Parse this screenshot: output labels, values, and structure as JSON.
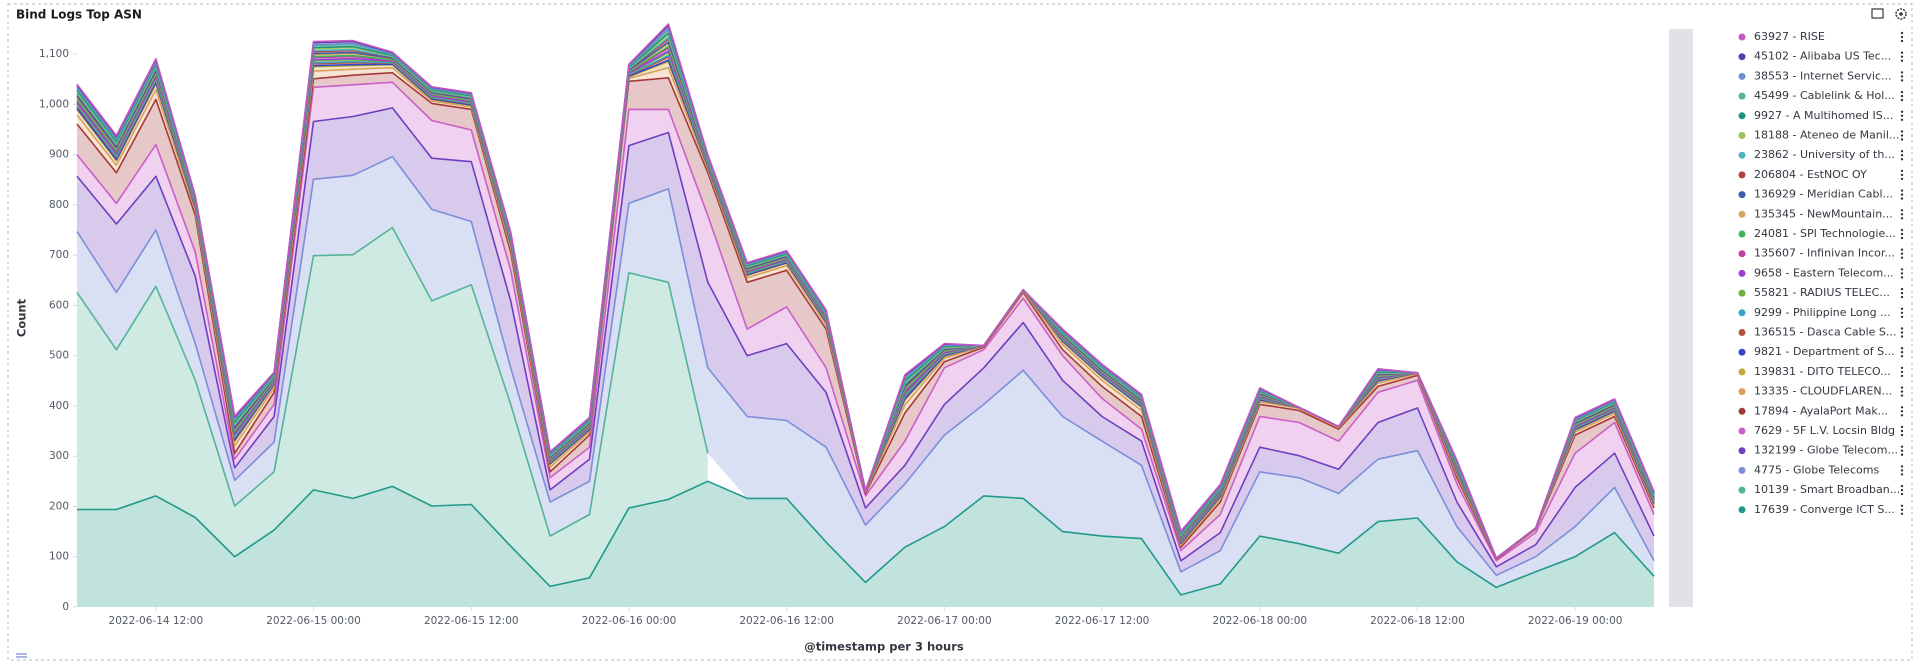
{
  "chart_data": {
    "type": "stacked-area",
    "title": "Bind Logs Top ASN",
    "x_label": "@timestamp per 3 hours",
    "y_label": "Count",
    "legend": "right",
    "grid": false,
    "x": [
      "2022-06-14 06:00",
      "2022-06-14 09:00",
      "2022-06-14 12:00",
      "2022-06-14 15:00",
      "2022-06-14 18:00",
      "2022-06-14 21:00",
      "2022-06-15 00:00",
      "2022-06-15 03:00",
      "2022-06-15 06:00",
      "2022-06-15 09:00",
      "2022-06-15 12:00",
      "2022-06-15 15:00",
      "2022-06-15 18:00",
      "2022-06-15 21:00",
      "2022-06-16 00:00",
      "2022-06-16 03:00",
      "2022-06-16 06:00",
      "2022-06-16 09:00",
      "2022-06-16 12:00",
      "2022-06-16 15:00",
      "2022-06-16 18:00",
      "2022-06-16 21:00",
      "2022-06-17 00:00",
      "2022-06-17 03:00",
      "2022-06-17 06:00",
      "2022-06-17 09:00",
      "2022-06-17 12:00",
      "2022-06-17 15:00",
      "2022-06-17 18:00",
      "2022-06-17 21:00",
      "2022-06-18 00:00",
      "2022-06-18 03:00",
      "2022-06-18 06:00",
      "2022-06-18 09:00",
      "2022-06-18 12:00",
      "2022-06-18 15:00",
      "2022-06-18 18:00",
      "2022-06-18 21:00",
      "2022-06-19 00:00",
      "2022-06-19 03:00",
      "2022-06-19 06:00"
    ],
    "xlim": [
      "2022-06-14 06:00",
      "2022-06-19 06:00"
    ],
    "xticks": [
      "2022-06-14 12:00",
      "2022-06-15 00:00",
      "2022-06-15 12:00",
      "2022-06-16 00:00",
      "2022-06-16 12:00",
      "2022-06-17 00:00",
      "2022-06-17 12:00",
      "2022-06-18 00:00",
      "2022-06-18 12:00",
      "2022-06-19 00:00"
    ],
    "ylim": [
      0,
      1150
    ],
    "yticks": [
      0,
      100,
      200,
      300,
      400,
      500,
      600,
      700,
      800,
      900,
      {
        "value": 1000,
        "label": "1,000"
      },
      {
        "value": 1100,
        "label": "1,100"
      }
    ],
    "series": [
      {
        "name": "63927 - RISE",
        "color": "#c457c0",
        "values": [
          2,
          2,
          2,
          1,
          2,
          1,
          2,
          2,
          1,
          1,
          1,
          1,
          1,
          1,
          1,
          3,
          1,
          1,
          1,
          1,
          0,
          2,
          1,
          0,
          0,
          1,
          1,
          1,
          1,
          1,
          1,
          0,
          0,
          1,
          0,
          1,
          0,
          0,
          1,
          1,
          1
        ]
      },
      {
        "name": "45102 - Alibaba US Tec...",
        "color": "#5a3aa8",
        "values": [
          4,
          4,
          4,
          2,
          4,
          2,
          4,
          4,
          2,
          2,
          2,
          2,
          2,
          2,
          2,
          6,
          2,
          2,
          2,
          2,
          0,
          4,
          2,
          0,
          0,
          2,
          2,
          2,
          2,
          2,
          2,
          0,
          0,
          2,
          0,
          2,
          0,
          0,
          2,
          2,
          2
        ]
      },
      {
        "name": "38553 - Internet Servic...",
        "color": "#6d8fd6",
        "values": [
          2,
          2,
          2,
          1,
          2,
          1,
          2,
          2,
          1,
          1,
          1,
          1,
          1,
          1,
          1,
          3,
          1,
          1,
          1,
          1,
          0,
          2,
          1,
          0,
          0,
          1,
          1,
          1,
          1,
          1,
          1,
          0,
          0,
          1,
          0,
          1,
          0,
          0,
          1,
          1,
          1
        ]
      },
      {
        "name": "45499 - Cablelink & Hol...",
        "color": "#54b399",
        "values": [
          4,
          4,
          4,
          2,
          4,
          2,
          4,
          4,
          2,
          2,
          2,
          2,
          2,
          2,
          2,
          6,
          2,
          2,
          2,
          2,
          0,
          4,
          2,
          0,
          0,
          2,
          2,
          2,
          2,
          2,
          2,
          0,
          0,
          2,
          0,
          2,
          0,
          0,
          2,
          2,
          2
        ]
      },
      {
        "name": "9927 - A Multihomed IS...",
        "color": "#209280",
        "values": [
          2,
          2,
          2,
          1,
          2,
          1,
          2,
          2,
          1,
          1,
          1,
          1,
          1,
          1,
          1,
          3,
          1,
          1,
          1,
          1,
          0,
          2,
          1,
          0,
          0,
          1,
          1,
          1,
          1,
          1,
          1,
          0,
          0,
          1,
          0,
          1,
          0,
          0,
          1,
          1,
          1
        ]
      },
      {
        "name": "18188 - Ateneo de Manil...",
        "color": "#9bc453",
        "values": [
          4,
          4,
          4,
          2,
          4,
          2,
          4,
          4,
          2,
          2,
          2,
          2,
          2,
          2,
          2,
          6,
          2,
          2,
          2,
          2,
          0,
          4,
          2,
          0,
          0,
          2,
          2,
          2,
          2,
          2,
          2,
          0,
          0,
          2,
          0,
          2,
          0,
          0,
          2,
          2,
          2
        ]
      },
      {
        "name": "23862 - University of th...",
        "color": "#4fb6c1",
        "values": [
          2,
          2,
          2,
          1,
          2,
          1,
          2,
          2,
          1,
          1,
          1,
          1,
          1,
          1,
          1,
          3,
          1,
          1,
          1,
          1,
          0,
          2,
          1,
          0,
          0,
          1,
          1,
          1,
          1,
          1,
          1,
          0,
          0,
          1,
          0,
          1,
          0,
          0,
          1,
          1,
          1
        ]
      },
      {
        "name": "206804 - EstNOC OY",
        "color": "#b0413e",
        "values": [
          4,
          4,
          4,
          2,
          4,
          2,
          4,
          4,
          2,
          2,
          2,
          2,
          2,
          2,
          2,
          6,
          2,
          2,
          2,
          2,
          0,
          4,
          2,
          0,
          0,
          2,
          2,
          2,
          2,
          2,
          2,
          0,
          0,
          2,
          0,
          2,
          0,
          0,
          2,
          2,
          2
        ]
      },
      {
        "name": "136929 - Meridian Cabl...",
        "color": "#3c5ea8",
        "values": [
          2,
          2,
          2,
          1,
          2,
          1,
          2,
          2,
          1,
          1,
          1,
          1,
          1,
          1,
          1,
          3,
          1,
          1,
          1,
          1,
          0,
          2,
          1,
          0,
          0,
          1,
          1,
          1,
          1,
          1,
          1,
          0,
          0,
          1,
          0,
          1,
          0,
          0,
          1,
          1,
          1
        ]
      },
      {
        "name": "135345 - NewMountain...",
        "color": "#d6a35c",
        "values": [
          4,
          4,
          4,
          2,
          4,
          2,
          4,
          4,
          2,
          2,
          2,
          2,
          2,
          2,
          2,
          6,
          2,
          2,
          2,
          2,
          0,
          4,
          2,
          0,
          0,
          2,
          2,
          2,
          2,
          2,
          2,
          0,
          0,
          2,
          0,
          2,
          0,
          0,
          2,
          2,
          2
        ]
      },
      {
        "name": "24081 - SPI Technologie...",
        "color": "#3fb55a",
        "values": [
          2,
          2,
          2,
          1,
          2,
          1,
          2,
          2,
          1,
          1,
          1,
          1,
          1,
          1,
          1,
          3,
          1,
          1,
          1,
          1,
          0,
          2,
          1,
          0,
          0,
          1,
          1,
          1,
          1,
          1,
          1,
          0,
          0,
          1,
          0,
          1,
          0,
          0,
          1,
          1,
          1
        ]
      },
      {
        "name": "135607 - Infinivan Incor...",
        "color": "#c43ca4",
        "values": [
          4,
          4,
          4,
          2,
          4,
          2,
          4,
          4,
          2,
          2,
          2,
          2,
          2,
          2,
          2,
          6,
          2,
          2,
          2,
          2,
          0,
          4,
          2,
          0,
          0,
          2,
          2,
          2,
          2,
          2,
          2,
          0,
          0,
          2,
          0,
          2,
          0,
          0,
          2,
          2,
          2
        ]
      },
      {
        "name": "9658 - Eastern Telecom...",
        "color": "#9a3fd6",
        "values": [
          2,
          2,
          2,
          1,
          2,
          1,
          2,
          2,
          1,
          1,
          1,
          1,
          1,
          1,
          1,
          3,
          1,
          1,
          1,
          1,
          0,
          2,
          1,
          0,
          0,
          1,
          1,
          1,
          1,
          1,
          1,
          0,
          0,
          1,
          0,
          1,
          0,
          0,
          1,
          1,
          1
        ]
      },
      {
        "name": "55821 - RADIUS TELEC...",
        "color": "#6db33f",
        "values": [
          4,
          4,
          4,
          2,
          4,
          2,
          4,
          4,
          2,
          2,
          2,
          2,
          2,
          2,
          2,
          6,
          2,
          2,
          2,
          2,
          0,
          4,
          2,
          0,
          0,
          2,
          2,
          2,
          2,
          2,
          2,
          0,
          0,
          2,
          0,
          2,
          0,
          0,
          2,
          2,
          2
        ]
      },
      {
        "name": "9299 - Philippine Long ...",
        "color": "#3aa4c4",
        "values": [
          2,
          2,
          2,
          1,
          2,
          1,
          2,
          2,
          1,
          1,
          1,
          1,
          1,
          1,
          1,
          3,
          1,
          1,
          1,
          1,
          0,
          2,
          1,
          0,
          0,
          1,
          1,
          1,
          1,
          1,
          1,
          0,
          0,
          1,
          0,
          1,
          0,
          0,
          1,
          1,
          1
        ]
      },
      {
        "name": "136515 - Dasca Cable S...",
        "color": "#b5503b",
        "values": [
          4,
          4,
          4,
          2,
          4,
          2,
          4,
          4,
          2,
          2,
          2,
          2,
          2,
          2,
          2,
          6,
          2,
          2,
          2,
          2,
          0,
          4,
          2,
          0,
          0,
          2,
          2,
          2,
          2,
          2,
          2,
          0,
          0,
          2,
          0,
          2,
          0,
          0,
          2,
          2,
          2
        ]
      },
      {
        "name": "9821 - Department of S...",
        "color": "#3344c4",
        "values": [
          2,
          2,
          2,
          1,
          2,
          1,
          2,
          2,
          1,
          1,
          1,
          1,
          1,
          1,
          1,
          3,
          1,
          1,
          1,
          1,
          0,
          2,
          1,
          0,
          0,
          1,
          1,
          1,
          1,
          1,
          1,
          0,
          0,
          1,
          0,
          1,
          0,
          0,
          1,
          1,
          1
        ]
      },
      {
        "name": "139831 - DITO TELECO...",
        "color": "#c4a83a",
        "values": [
          11,
          9,
          12,
          5,
          9,
          6,
          9,
          7,
          6,
          3,
          3,
          6,
          6,
          4,
          3,
          12,
          4,
          5,
          5,
          5,
          2,
          10,
          4,
          1,
          2,
          6,
          7,
          7,
          3,
          4,
          3,
          2,
          2,
          4,
          2,
          4,
          1,
          1,
          4,
          4,
          3
        ]
      },
      {
        "name": "13335 - CLOUDFLAREN...",
        "color": "#daa05d",
        "values": [
          18,
          15,
          19,
          9,
          15,
          9,
          15,
          12,
          10,
          5,
          5,
          9,
          9,
          6,
          6,
          20,
          7,
          9,
          9,
          8,
          3,
          16,
          7,
          2,
          3,
          10,
          12,
          12,
          4,
          6,
          5,
          4,
          3,
          6,
          3,
          6,
          1,
          1,
          6,
          6,
          5
        ]
      },
      {
        "name": "17894 - AyalaPort Mak...",
        "color": "#a63a3a",
        "values": [
          61,
          61,
          90,
          73,
          12,
          24,
          17,
          19,
          19,
          34,
          41,
          36,
          12,
          24,
          56,
          63,
          85,
          93,
          73,
          77,
          5,
          56,
          12,
          5,
          12,
          12,
          24,
          25,
          7,
          25,
          24,
          24,
          24,
          12,
          10,
          12,
          3,
          7,
          36,
          12,
          13
        ]
      },
      {
        "name": "7629 - 5F L.V. Locsin Bldg",
        "color": "#ca5fc9",
        "values": [
          43,
          41,
          63,
          48,
          17,
          24,
          68,
          63,
          51,
          75,
          63,
          61,
          24,
          24,
          72,
          46,
          133,
          53,
          73,
          49,
          24,
          48,
          73,
          36,
          48,
          49,
          36,
          24,
          20,
          36,
          61,
          66,
          56,
          60,
          55,
          36,
          12,
          24,
          68,
          61,
          43
        ]
      },
      {
        "name": "132199 - Globe Telecom...",
        "color": "#6f3fbf",
        "values": [
          110,
          136,
          107,
          134,
          25,
          51,
          115,
          117,
          97,
          102,
          119,
          133,
          24,
          44,
          115,
          112,
          170,
          121,
          153,
          109,
          34,
          37,
          61,
          73,
          95,
          72,
          49,
          48,
          22,
          36,
          49,
          44,
          48,
          73,
          85,
          49,
          17,
          24,
          78,
          68,
          49
        ]
      },
      {
        "name": "4775 - Globe Telecoms",
        "color": "#7b8ed8",
        "values": [
          121,
          114,
          112,
          73,
          51,
          59,
          152,
          158,
          141,
          182,
          126,
          73,
          68,
          66,
          138,
          186,
          170,
          163,
          155,
          189,
          114,
          126,
          182,
          182,
          255,
          229,
          189,
          146,
          46,
          66,
          128,
          131,
          119,
          124,
          134,
          70,
          24,
          30,
          60,
          90,
          31
        ]
      },
      {
        "name": "10139 - Smart Broadban...",
        "color": "#54b399",
        "values": [
          432,
          318,
          417,
          273,
          101,
          116,
          466,
          485,
          515,
          408,
          437,
          282,
          100,
          126,
          468,
          432,
          56,
          null,
          null,
          null,
          null,
          null,
          null,
          null,
          null,
          null,
          null,
          null,
          null,
          null,
          null,
          null,
          null,
          null,
          null,
          null,
          null,
          null,
          null,
          null,
          null
        ]
      },
      {
        "name": "17639 - Converge ICT S...",
        "color": "#209a8a",
        "values": [
          194,
          194,
          221,
          178,
          100,
          153,
          233,
          216,
          240,
          201,
          204,
          121,
          41,
          58,
          197,
          214,
          250,
          216,
          216,
          129,
          49,
          119,
          160,
          221,
          216,
          150,
          141,
          136,
          24,
          46,
          141,
          126,
          107,
          170,
          177,
          90,
          39,
          70,
          100,
          148,
          61
        ]
      }
    ]
  }
}
